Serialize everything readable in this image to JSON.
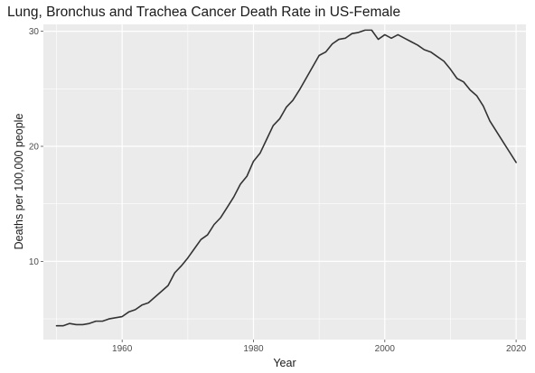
{
  "chart_data": {
    "type": "line",
    "title": "Lung, Bronchus and Trachea Cancer Death Rate in US-Female",
    "xlabel": "Year",
    "ylabel": "Deaths per 100,000 people",
    "xlim": [
      1948,
      2021.5
    ],
    "ylim": [
      3.2,
      30.6
    ],
    "x_ticks": [
      1960,
      1980,
      2000,
      2020
    ],
    "x_tick_labels": [
      "1960",
      "1980",
      "2000",
      "2020"
    ],
    "y_ticks": [
      10,
      20,
      30
    ],
    "y_tick_labels": [
      "10",
      "20",
      "30"
    ],
    "grid": true,
    "legend": "none",
    "colors": {
      "panel": "#ebebeb",
      "grid": "#ffffff",
      "line": "#333333"
    },
    "series": [
      {
        "x": [
          1950,
          1951,
          1952,
          1953,
          1954,
          1955,
          1956,
          1957,
          1958,
          1959,
          1960,
          1961,
          1962,
          1963,
          1964,
          1965,
          1966,
          1967,
          1968,
          1969,
          1970,
          1971,
          1972,
          1973,
          1974,
          1975,
          1976,
          1977,
          1978,
          1979,
          1980,
          1981,
          1982,
          1983,
          1984,
          1985,
          1986,
          1987,
          1988,
          1989,
          1990,
          1991,
          1992,
          1993,
          1994,
          1995,
          1996,
          1997,
          1998,
          1999,
          2000,
          2001,
          2002,
          2003,
          2004,
          2005,
          2006,
          2007,
          2008,
          2009,
          2010,
          2011,
          2012,
          2013,
          2014,
          2015,
          2016,
          2017,
          2018,
          2019,
          2020
        ],
        "values": [
          4.4,
          4.4,
          4.6,
          4.5,
          4.5,
          4.6,
          4.8,
          4.8,
          5.0,
          5.1,
          5.2,
          5.6,
          5.8,
          6.2,
          6.4,
          6.9,
          7.4,
          7.9,
          9.0,
          9.6,
          10.3,
          11.1,
          11.9,
          12.3,
          13.2,
          13.8,
          14.7,
          15.6,
          16.7,
          17.4,
          18.7,
          19.4,
          20.6,
          21.8,
          22.4,
          23.4,
          24.0,
          24.9,
          25.9,
          26.9,
          27.9,
          28.2,
          28.9,
          29.3,
          29.4,
          29.8,
          29.9,
          30.1,
          30.1,
          29.3,
          29.7,
          29.4,
          29.7,
          29.4,
          29.1,
          28.8,
          28.4,
          28.2,
          27.8,
          27.4,
          26.7,
          25.9,
          25.6,
          24.9,
          24.4,
          23.5,
          22.2,
          21.3,
          20.4,
          19.5,
          18.6
        ]
      }
    ]
  }
}
